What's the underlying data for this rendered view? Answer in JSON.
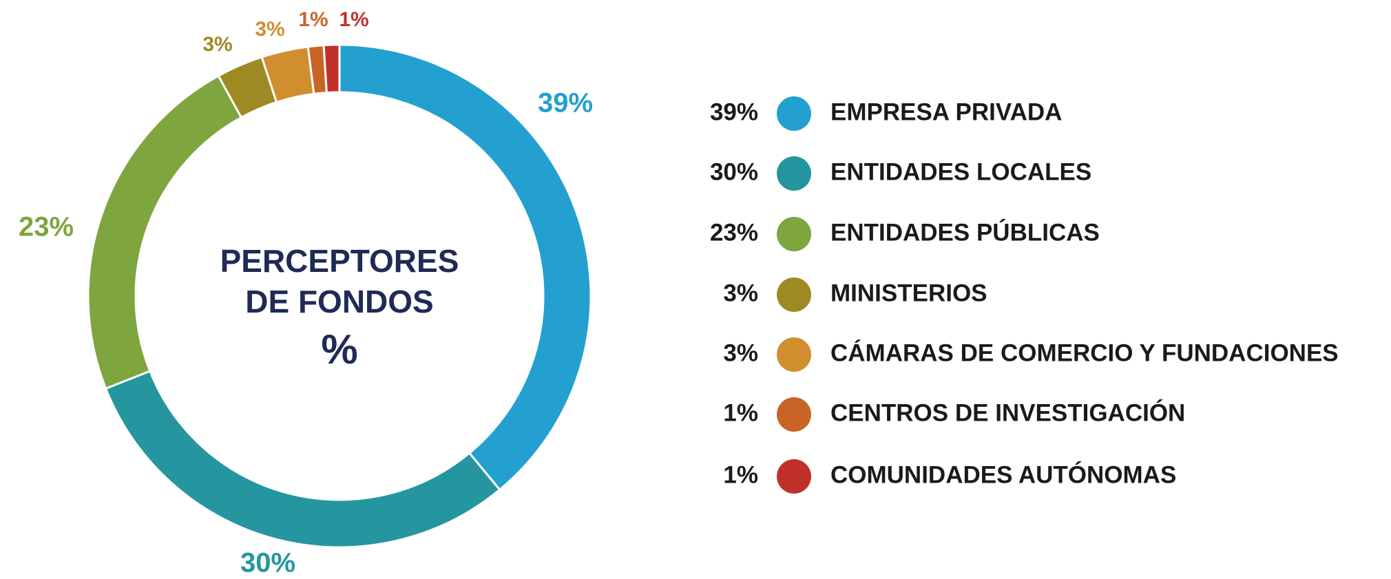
{
  "chart_data": {
    "type": "donut",
    "title_lines": [
      "PERCEPTORES",
      "DE FONDOS"
    ],
    "unit_label": "%",
    "categories": [
      "EMPRESA PRIVADA",
      "ENTIDADES LOCALES",
      "ENTIDADES PÚBLICAS",
      "MINISTERIOS",
      "CÁMARAS DE COMERCIO Y FUNDACIONES",
      "CENTROS DE INVESTIGACIÓN",
      "COMUNIDADES AUTÓNOMAS"
    ],
    "values": [
      39,
      30,
      23,
      3,
      3,
      1,
      1
    ],
    "value_labels": [
      "39%",
      "30%",
      "23%",
      "3%",
      "3%",
      "1%",
      "1%"
    ],
    "colors": [
      "#23a0cf",
      "#2596a0",
      "#7ea53e",
      "#9d8a22",
      "#d08e2e",
      "#c86526",
      "#c0302b"
    ],
    "legend": "right"
  }
}
